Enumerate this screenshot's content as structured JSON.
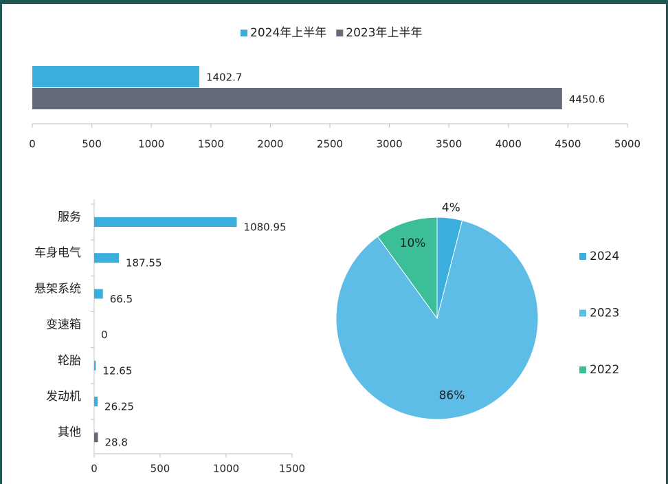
{
  "chart_data": [
    {
      "type": "hbar_grouped",
      "series": [
        {
          "name": "2024年上半年",
          "color": "#3aaedc",
          "values": [
            1402.7
          ]
        },
        {
          "name": "2023年上半年",
          "color": "#646b78",
          "values": [
            4450.6
          ]
        }
      ],
      "xlim": [
        0,
        5000
      ],
      "xticks": [
        0,
        500,
        1000,
        1500,
        2000,
        2500,
        3000,
        3500,
        4000,
        4500,
        5000
      ],
      "legend": "top"
    },
    {
      "type": "hbar",
      "categories": [
        "服务",
        "车身电气",
        "悬架系统",
        "变速箱",
        "轮胎",
        "发动机",
        "其他"
      ],
      "values": [
        1080.95,
        187.55,
        66.5,
        0,
        12.65,
        26.25,
        28.8
      ],
      "colors": [
        "#3aaedc",
        "#3aaedc",
        "#3aaedc",
        "#3aaedc",
        "#3aaedc",
        "#3aaedc",
        "#646b78"
      ],
      "xlim": [
        0,
        1500
      ],
      "xticks": [
        0,
        500,
        1000,
        1500
      ]
    },
    {
      "type": "pie",
      "categories": [
        "2024",
        "2023",
        "2022"
      ],
      "values": [
        4,
        86,
        10
      ],
      "value_labels": [
        "4%",
        "86%",
        "10%"
      ],
      "colors": [
        "#3aaedc",
        "#5dbde7",
        "#3cbf98"
      ],
      "legend": "right"
    }
  ]
}
